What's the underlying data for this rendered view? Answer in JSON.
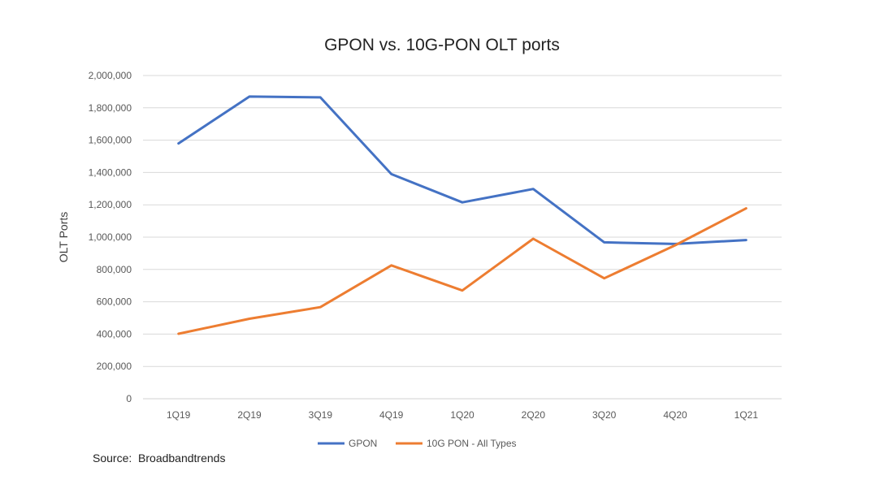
{
  "chart_data": {
    "type": "line",
    "title": "GPON vs. 10G-PON OLT ports",
    "xlabel": "",
    "ylabel": "OLT Ports",
    "categories": [
      "1Q19",
      "2Q19",
      "3Q19",
      "4Q19",
      "1Q20",
      "2Q20",
      "3Q20",
      "4Q20",
      "1Q21"
    ],
    "ylim": [
      0,
      2000000
    ],
    "yticks": [
      0,
      200000,
      400000,
      600000,
      800000,
      1000000,
      1200000,
      1400000,
      1600000,
      1800000,
      2000000
    ],
    "ytick_labels": [
      "0",
      "200,000",
      "400,000",
      "600,000",
      "800,000",
      "1,000,000",
      "1,200,000",
      "1,400,000",
      "1,600,000",
      "1,800,000",
      "2,000,000"
    ],
    "grid": true,
    "legend_position": "bottom",
    "series": [
      {
        "name": "GPON",
        "color": "#4472C4",
        "values": [
          1580000,
          1870000,
          1865000,
          1390000,
          1215000,
          1298000,
          968000,
          958000,
          982000
        ]
      },
      {
        "name": "10G PON - All Types",
        "color": "#ED7D31",
        "values": [
          402000,
          495000,
          567000,
          825000,
          670000,
          990000,
          745000,
          950000,
          1178000
        ]
      }
    ]
  },
  "source_text": "Source:  Broadbandtrends"
}
